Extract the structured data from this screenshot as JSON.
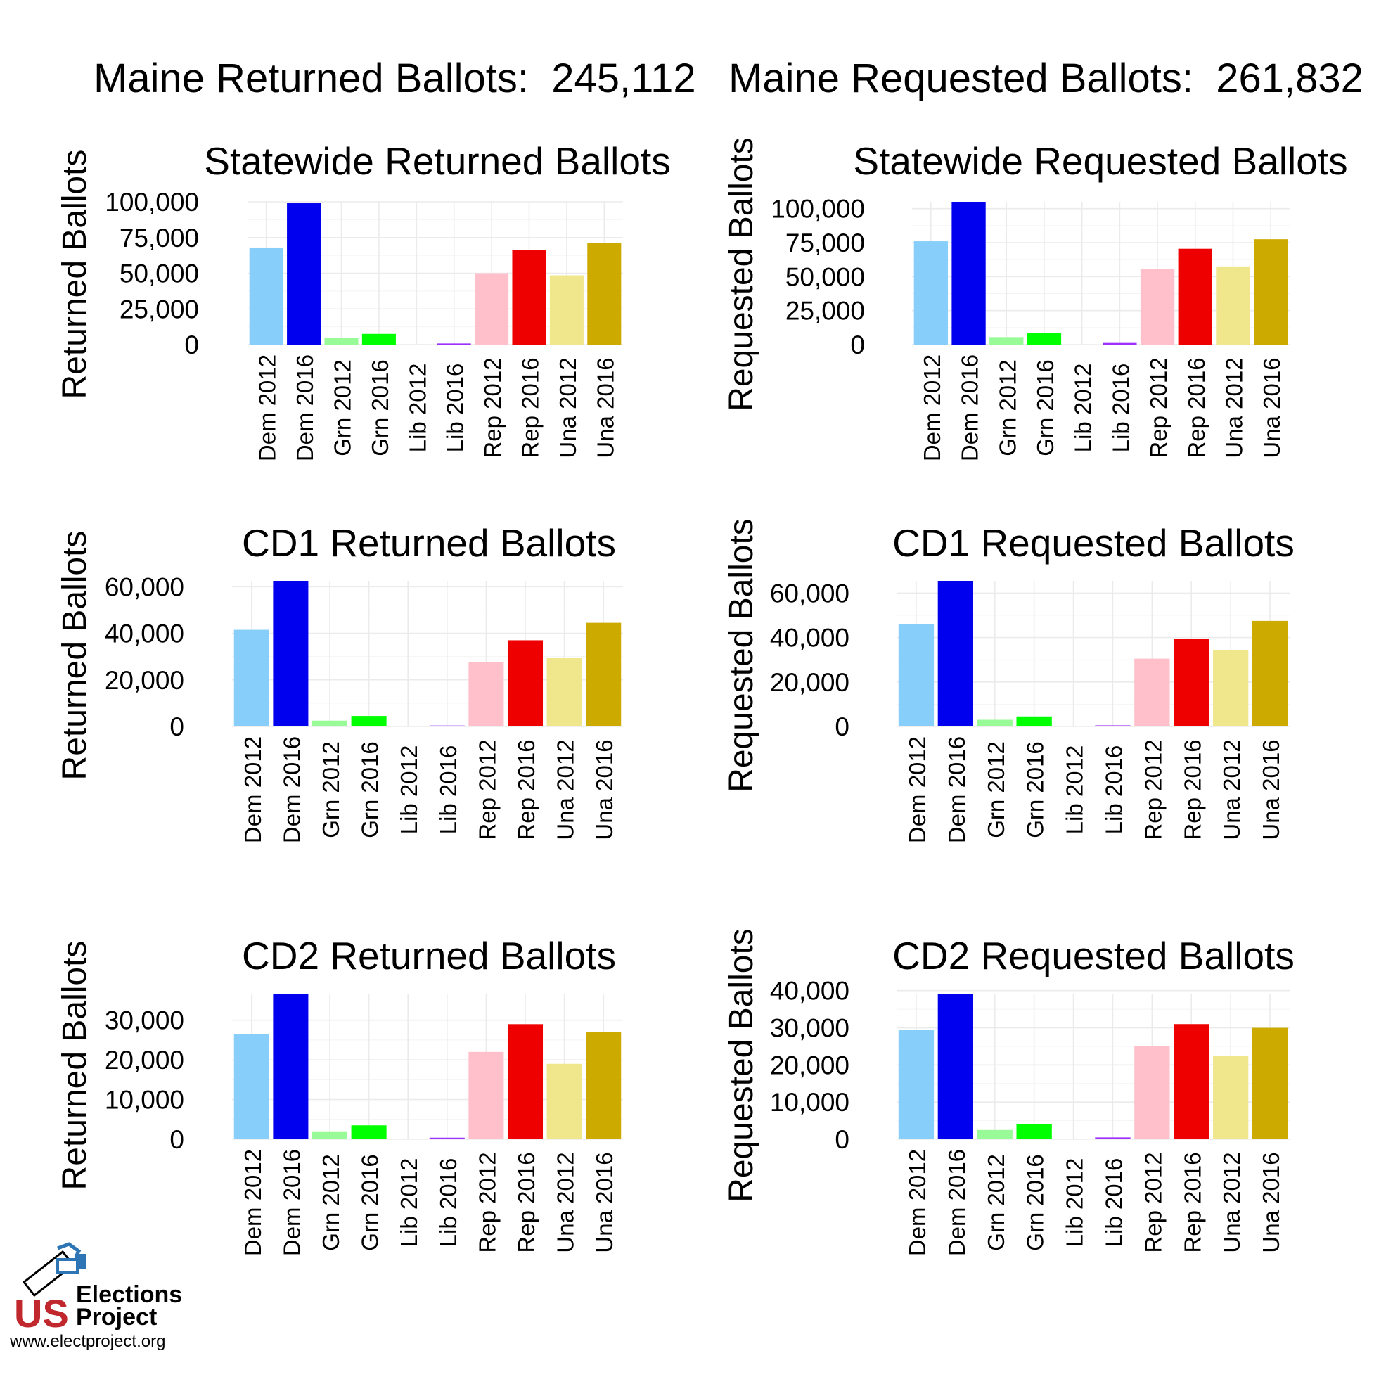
{
  "header": {
    "returned": {
      "label": "Maine Returned Ballots:",
      "value": "245,112"
    },
    "requested": {
      "label": "Maine Requested Ballots:",
      "value": "261,832"
    }
  },
  "logo": {
    "line1_us": "US",
    "line1": "Elections",
    "line2": "Project",
    "url": "www.electproject.org",
    "colors": {
      "red": "#c0282d",
      "blue": "#2e75b6"
    }
  },
  "bar_colors": [
    "#87cefa",
    "#0000ee",
    "#98fb98",
    "#00ff00",
    "#9b30ff",
    "#9b30ff",
    "#ffc0cb",
    "#ee0000",
    "#f0e68c",
    "#cdaa00"
  ],
  "chart_data": [
    {
      "type": "bar",
      "title": "Statewide Returned Ballots",
      "ylabel": "Returned Ballots",
      "xlabel": "",
      "categories": [
        "Dem 2012",
        "Dem 2016",
        "Grn 2012",
        "Grn 2016",
        "Lib 2012",
        "Lib 2016",
        "Rep 2012",
        "Rep 2016",
        "Una 2012",
        "Una 2016"
      ],
      "values": [
        68000,
        99000,
        4500,
        7500,
        0,
        800,
        50000,
        66000,
        48500,
        71000
      ],
      "ylim": [
        0,
        100000
      ],
      "yticks": [
        0,
        25000,
        50000,
        75000,
        100000
      ],
      "ytick_labels": [
        "0",
        "25,000",
        "50,000",
        "75,000",
        "100,000"
      ],
      "grid": true
    },
    {
      "type": "bar",
      "title": "Statewide Requested Ballots",
      "ylabel": "Requested Ballots",
      "xlabel": "",
      "categories": [
        "Dem 2012",
        "Dem 2016",
        "Grn 2012",
        "Grn 2016",
        "Lib 2012",
        "Lib 2016",
        "Rep 2012",
        "Rep 2016",
        "Una 2012",
        "Una 2016"
      ],
      "values": [
        76000,
        105000,
        5500,
        8500,
        0,
        1200,
        55500,
        70500,
        57500,
        77500
      ],
      "ylim": [
        0,
        105000
      ],
      "yticks": [
        0,
        25000,
        50000,
        75000,
        100000
      ],
      "ytick_labels": [
        "0",
        "25,000",
        "50,000",
        "75,000",
        "100,000"
      ],
      "grid": true
    },
    {
      "type": "bar",
      "title": "CD1 Returned Ballots",
      "ylabel": "Returned Ballots",
      "xlabel": "",
      "categories": [
        "Dem 2012",
        "Dem 2016",
        "Grn 2012",
        "Grn 2016",
        "Lib 2012",
        "Lib 2016",
        "Rep 2012",
        "Rep 2016",
        "Una 2012",
        "Una 2016"
      ],
      "values": [
        41500,
        62500,
        2500,
        4500,
        0,
        400,
        27500,
        37000,
        29500,
        44500
      ],
      "ylim": [
        0,
        62500
      ],
      "yticks": [
        0,
        20000,
        40000,
        60000
      ],
      "ytick_labels": [
        "0",
        "20,000",
        "40,000",
        "60,000"
      ],
      "grid": true
    },
    {
      "type": "bar",
      "title": "CD1 Requested Ballots",
      "ylabel": "Requested Ballots",
      "xlabel": "",
      "categories": [
        "Dem 2012",
        "Dem 2016",
        "Grn 2012",
        "Grn 2016",
        "Lib 2012",
        "Lib 2016",
        "Rep 2012",
        "Rep 2016",
        "Una 2012",
        "Una 2016"
      ],
      "values": [
        46000,
        65500,
        3000,
        4500,
        0,
        500,
        30500,
        39500,
        34500,
        47500
      ],
      "ylim": [
        0,
        65500
      ],
      "yticks": [
        0,
        20000,
        40000,
        60000
      ],
      "ytick_labels": [
        "0",
        "20,000",
        "40,000",
        "60,000"
      ],
      "grid": true
    },
    {
      "type": "bar",
      "title": "CD2 Returned Ballots",
      "ylabel": "Returned Ballots",
      "xlabel": "",
      "categories": [
        "Dem 2012",
        "Dem 2016",
        "Grn 2012",
        "Grn 2016",
        "Lib 2012",
        "Lib 2016",
        "Rep 2012",
        "Rep 2016",
        "Una 2012",
        "Una 2016"
      ],
      "values": [
        26500,
        36500,
        2000,
        3500,
        0,
        400,
        22000,
        29000,
        19000,
        27000
      ],
      "ylim": [
        0,
        36500
      ],
      "yticks": [
        0,
        10000,
        20000,
        30000
      ],
      "ytick_labels": [
        "0",
        "10,000",
        "20,000",
        "30,000"
      ],
      "grid": true
    },
    {
      "type": "bar",
      "title": "CD2 Requested Ballots",
      "ylabel": "Requested Ballots",
      "xlabel": "",
      "categories": [
        "Dem 2012",
        "Dem 2016",
        "Grn 2012",
        "Grn 2016",
        "Lib 2012",
        "Lib 2016",
        "Rep 2012",
        "Rep 2016",
        "Una 2012",
        "Una 2016"
      ],
      "values": [
        29500,
        39000,
        2500,
        4000,
        0,
        500,
        25000,
        31000,
        22500,
        30000
      ],
      "ylim": [
        0,
        39000
      ],
      "yticks": [
        0,
        10000,
        20000,
        30000,
        40000
      ],
      "ytick_labels": [
        "0",
        "10,000",
        "20,000",
        "30,000",
        "40,000"
      ],
      "grid": true
    }
  ]
}
